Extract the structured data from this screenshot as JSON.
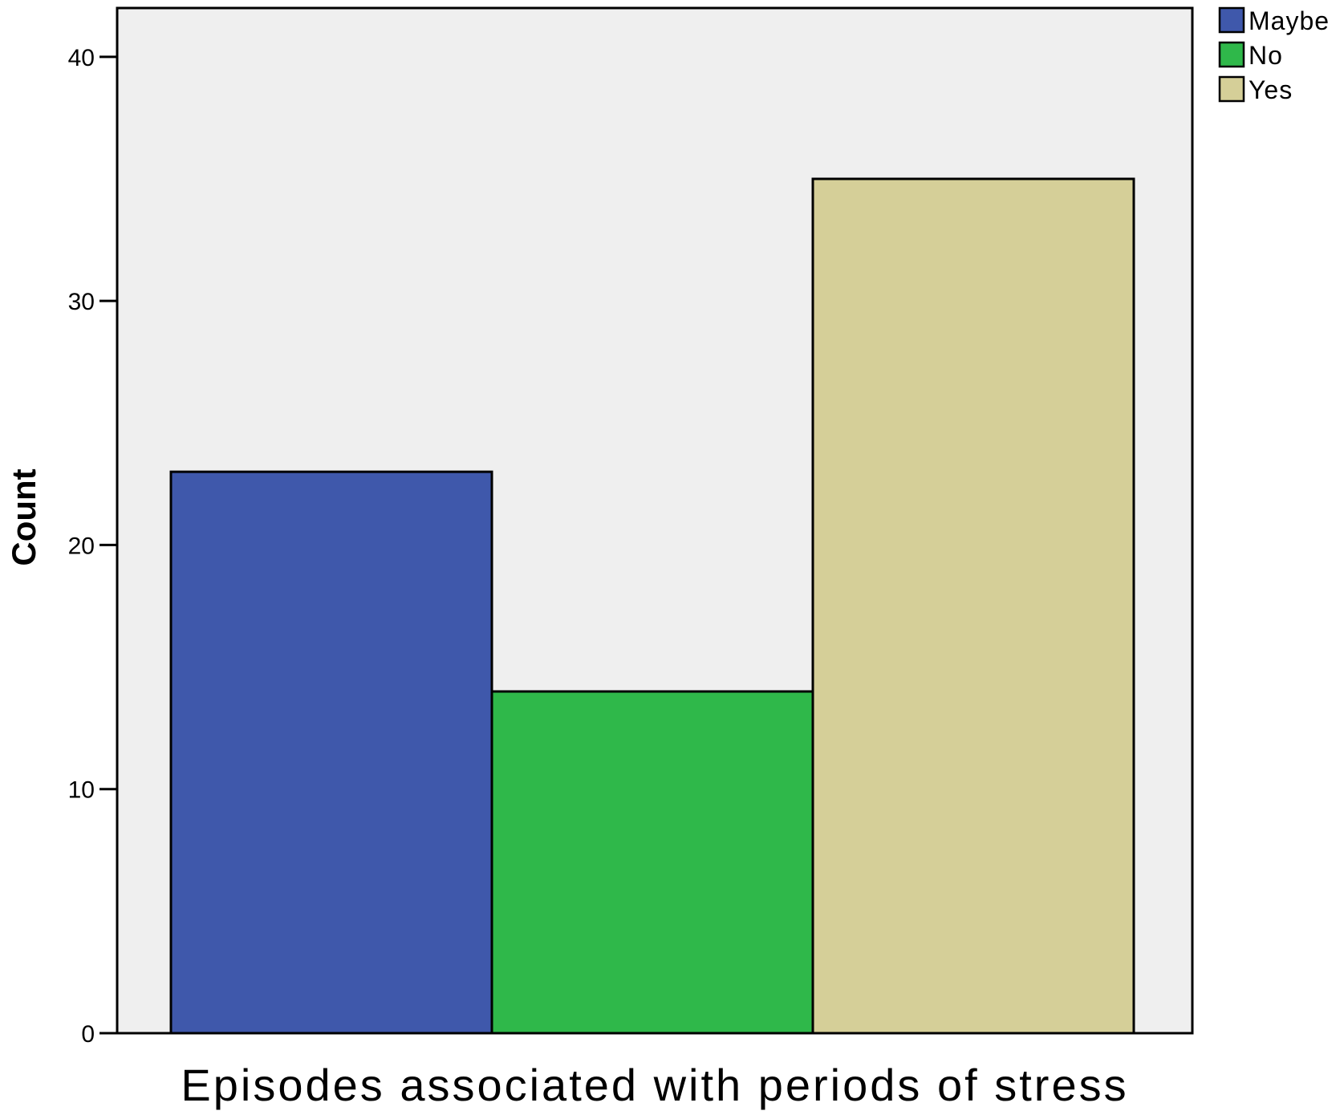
{
  "chart_data": {
    "type": "bar",
    "categories": [
      "Maybe",
      "No",
      "Yes"
    ],
    "values": [
      23,
      14,
      35
    ],
    "colors": [
      "#3f58ab",
      "#2fb84a",
      "#d5cf98"
    ],
    "xlabel": "Episodes associated with periods of stress",
    "ylabel": "Count",
    "ylim": [
      0,
      42
    ],
    "yticks": [
      "0",
      "10",
      "20",
      "30",
      "40"
    ],
    "legend": [
      "Maybe",
      "No",
      "Yes"
    ],
    "legend_position": "top-right",
    "plot_background": "#efefef",
    "grid": false
  }
}
